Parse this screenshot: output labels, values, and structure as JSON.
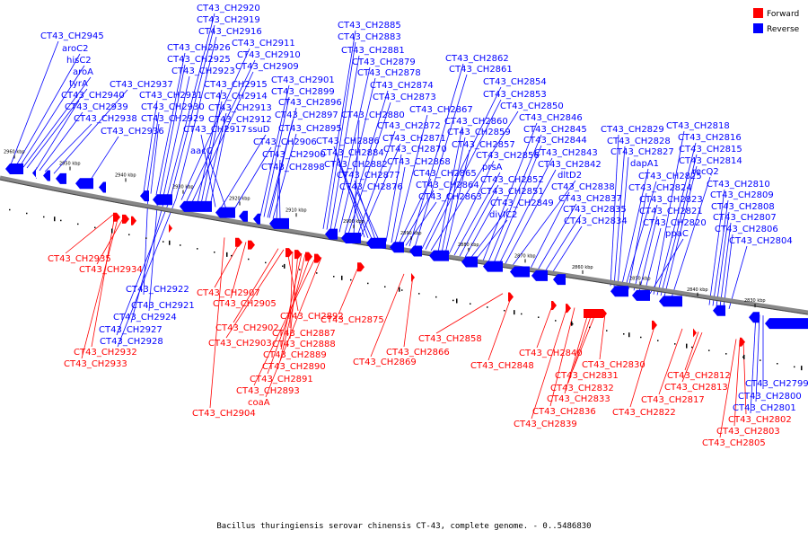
{
  "legend": {
    "forward": {
      "label": "Forward",
      "color": "#ff0000"
    },
    "reverse": {
      "label": "Reverse",
      "color": "#0000ff"
    }
  },
  "caption": "Bacillus thuringiensis serovar chinensis CT-43, complete genome. - 0..5486830",
  "ticks": [
    "2960 kbp",
    "2950 kbp",
    "2940 kbp",
    "2930 kbp",
    "2920 kbp",
    "2910 kbp",
    "2900 kbp",
    "2890 kbp",
    "2880 kbp",
    "2870 kbp",
    "2860 kbp",
    "2850 kbp",
    "2840 kbp",
    "2830 kbp"
  ],
  "reverse_labels": [
    "CT43_CH2945",
    "aroC2",
    "hisC2",
    "aroA",
    "tyrA",
    "CT43_CH2940",
    "CT43_CH2939",
    "CT43_CH2938",
    "CT43_CH2937",
    "CT43_CH2936",
    "CT43_CH2931",
    "CT43_CH2930",
    "CT43_CH2929",
    "CT43_CH2926",
    "CT43_CH2925",
    "CT43_CH2923",
    "CT43_CH2920",
    "CT43_CH2919",
    "CT43_CH2916",
    "CT43_CH2911",
    "CT43_CH2910",
    "CT43_CH2909",
    "CT43_CH2915",
    "CT43_CH2914",
    "CT43_CH2913",
    "CT43_CH2912",
    "CT43_CH2917",
    "ssuD",
    "aacC",
    "CT43_CH2906",
    "CT43_CH2901",
    "CT43_CH2899",
    "CT43_CH2896",
    "CT43_CH2897",
    "CT43_CH2895",
    "CT43_CH2900",
    "CT43_CH2898",
    "CT43_CH2885",
    "CT43_CH2883",
    "CT43_CH2881",
    "CT43_CH2879",
    "CT43_CH2878",
    "CT43_CH2874",
    "CT43_CH2873",
    "CT43_CH2880",
    "CT43_CH2872",
    "CT43_CH2871",
    "CT43_CH2886",
    "CT43_CH2884",
    "CT43_CH2882",
    "CT43_CH2877",
    "CT43_CH2876",
    "CT43_CH2870",
    "CT43_CH2868",
    "CT43_CH2867",
    "CT43_CH2865",
    "CT43_CH2864",
    "CT43_CH2863",
    "CT43_CH2862",
    "CT43_CH2861",
    "CT43_CH2854",
    "CT43_CH2853",
    "CT43_CH2850",
    "CT43_CH2860",
    "CT43_CH2859",
    "CT43_CH2857",
    "CT43_CH2856",
    "prsA",
    "CT43_CH2852",
    "CT43_CH2851",
    "CT43_CH2849",
    "divIC2",
    "CT43_CH2846",
    "CT43_CH2845",
    "CT43_CH2844",
    "CT43_CH2843",
    "CT43_CH2842",
    "dltD2",
    "CT43_CH2838",
    "CT43_CH2837",
    "CT43_CH2835",
    "CT43_CH2834",
    "CT43_CH2829",
    "CT43_CH2828",
    "CT43_CH2827",
    "dapA1",
    "CT43_CH2825",
    "CT43_CH2824",
    "CT43_CH2823",
    "CT43_CH2821",
    "CT43_CH2820",
    "ppaC",
    "CT43_CH2818",
    "CT43_CH2816",
    "CT43_CH2815",
    "CT43_CH2814",
    "recQ2",
    "CT43_CH2810",
    "CT43_CH2809",
    "CT43_CH2808",
    "CT43_CH2807",
    "CT43_CH2806",
    "CT43_CH2804",
    "CT43_CH2922",
    "CT43_CH2921",
    "CT43_CH2924",
    "CT43_CH2927",
    "CT43_CH2928",
    "CT43_CH2799",
    "CT43_CH2800",
    "CT43_CH2801"
  ],
  "forward_labels": [
    "CT43_CH2935",
    "CT43_CH2934",
    "CT43_CH2932",
    "CT43_CH2933",
    "CT43_CH2907",
    "CT43_CH2905",
    "CT43_CH2902",
    "CT43_CH2903",
    "CT43_CH2904",
    "CT43_CH2892",
    "CT43_CH2887",
    "CT43_CH2888",
    "CT43_CH2889",
    "CT43_CH2890",
    "CT43_CH2891",
    "CT43_CH2893",
    "coaA",
    "CT43_CH2875",
    "CT43_CH2866",
    "CT43_CH2869",
    "CT43_CH2858",
    "CT43_CH2848",
    "CT43_CH2840",
    "CT43_CH2830",
    "CT43_CH2831",
    "CT43_CH2832",
    "CT43_CH2833",
    "CT43_CH2836",
    "CT43_CH2839",
    "CT43_CH2822",
    "CT43_CH2817",
    "CT43_CH2813",
    "CT43_CH2812",
    "CT43_CH2802",
    "CT43_CH2803",
    "CT43_CH2805"
  ]
}
